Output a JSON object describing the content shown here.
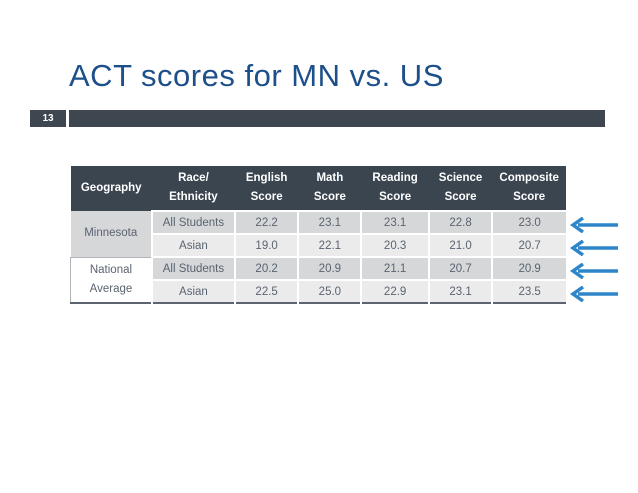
{
  "slide": {
    "title": "ACT scores for MN vs. US",
    "number": "13"
  },
  "table": {
    "headers": {
      "geography": "Geography",
      "race_l1": "Race/",
      "race_l2": "Ethnicity",
      "english_l1": "English",
      "english_l2": "Score",
      "math_l1": "Math",
      "math_l2": "Score",
      "reading_l1": "Reading",
      "reading_l2": "Score",
      "science_l1": "Science",
      "science_l2": "Score",
      "composite_l1": "Composite",
      "composite_l2": "Score"
    },
    "groups": [
      {
        "geography": "Minnesota",
        "rows": [
          {
            "race": "All Students",
            "english": "22.2",
            "math": "23.1",
            "reading": "23.1",
            "science": "22.8",
            "composite": "23.0"
          },
          {
            "race": "Asian",
            "english": "19.0",
            "math": "22.1",
            "reading": "20.3",
            "science": "21.0",
            "composite": "20.7"
          }
        ]
      },
      {
        "geography_l1": "National",
        "geography_l2": "Average",
        "rows": [
          {
            "race": "All Students",
            "english": "20.2",
            "math": "20.9",
            "reading": "21.1",
            "science": "20.7",
            "composite": "20.9"
          },
          {
            "race": "Asian",
            "english": "22.5",
            "math": "25.0",
            "reading": "22.9",
            "science": "23.1",
            "composite": "23.5"
          }
        ]
      }
    ]
  },
  "annotations": {
    "arrow_icon": "left-arrow-icon",
    "arrow_color": "#2e86c8"
  }
}
